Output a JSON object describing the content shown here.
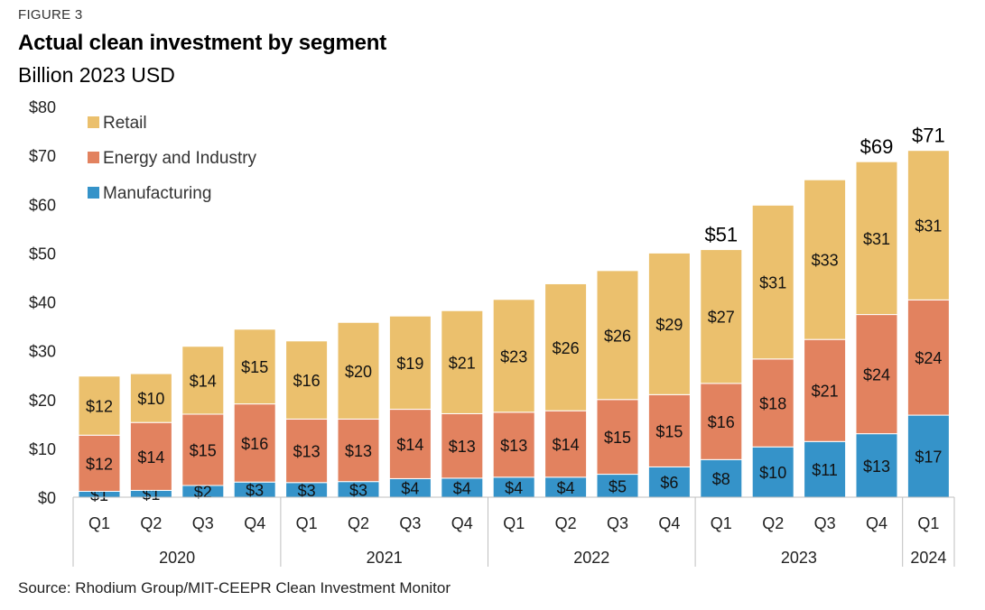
{
  "figure_label": "FIGURE 3",
  "title": "Actual clean investment by segment",
  "subtitle": "Billion 2023 USD",
  "source": "Source: Rhodium Group/MIT-CEEPR Clean Investment Monitor",
  "colors": {
    "Manufacturing": "#3593c9",
    "Energy and Industry": "#e2825f",
    "Retail": "#ebc06d"
  },
  "chart_data": {
    "type": "bar",
    "stacked": true,
    "title": "Actual clean investment by segment",
    "subtitle": "Billion 2023 USD",
    "ylim": [
      0,
      80
    ],
    "yticks": [
      0,
      10,
      20,
      30,
      40,
      50,
      60,
      70,
      80
    ],
    "ytick_labels": [
      "$0",
      "$10",
      "$20",
      "$30",
      "$40",
      "$50",
      "$60",
      "$70",
      "$80"
    ],
    "grid": false,
    "legend_position": "top-left",
    "categories": [
      "Q1",
      "Q2",
      "Q3",
      "Q4",
      "Q1",
      "Q2",
      "Q3",
      "Q4",
      "Q1",
      "Q2",
      "Q3",
      "Q4",
      "Q1",
      "Q2",
      "Q3",
      "Q4",
      "Q1"
    ],
    "groups": [
      {
        "label": "2020",
        "count": 4
      },
      {
        "label": "2021",
        "count": 4
      },
      {
        "label": "2022",
        "count": 4
      },
      {
        "label": "2023",
        "count": 4
      },
      {
        "label": "2024",
        "count": 1
      }
    ],
    "series": [
      {
        "name": "Manufacturing",
        "values": [
          1.2,
          1.4,
          2.4,
          3.1,
          3.0,
          3.2,
          3.8,
          3.9,
          4.1,
          4.1,
          4.7,
          6.2,
          7.7,
          10.3,
          11.4,
          13.0,
          16.8
        ],
        "labels": [
          "$1",
          "$1",
          "$2",
          "$3",
          "$3",
          "$3",
          "$4",
          "$4",
          "$4",
          "$4",
          "$5",
          "$6",
          "$8",
          "$10",
          "$11",
          "$13",
          "$17"
        ]
      },
      {
        "name": "Energy and Industry",
        "values": [
          11.5,
          13.9,
          14.6,
          16.0,
          13.0,
          12.8,
          14.2,
          13.2,
          13.3,
          13.6,
          15.3,
          14.8,
          15.6,
          18.0,
          20.9,
          24.4,
          23.6
        ],
        "labels": [
          "$12",
          "$14",
          "$15",
          "$16",
          "$13",
          "$13",
          "$14",
          "$13",
          "$13",
          "$14",
          "$15",
          "$15",
          "$16",
          "$18",
          "$21",
          "$24",
          "$24"
        ]
      },
      {
        "name": "Retail",
        "values": [
          12.1,
          10.0,
          13.9,
          15.3,
          16.0,
          19.8,
          19.1,
          21.1,
          23.1,
          26.0,
          26.4,
          29.0,
          27.4,
          31.5,
          32.7,
          31.3,
          30.6
        ],
        "labels": [
          "$12",
          "$10",
          "$14",
          "$15",
          "$16",
          "$20",
          "$19",
          "$21",
          "$23",
          "$26",
          "$26",
          "$29",
          "$27",
          "$31",
          "$33",
          "$31",
          "$31"
        ]
      }
    ],
    "total_labels": [
      {
        "index": 12,
        "label": "$51"
      },
      {
        "index": 15,
        "label": "$69"
      },
      {
        "index": 16,
        "label": "$71"
      }
    ]
  }
}
